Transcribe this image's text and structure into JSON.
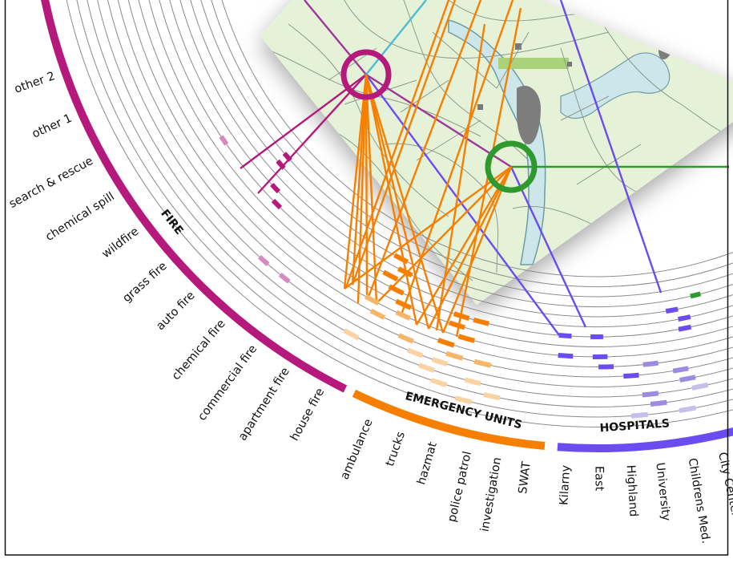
{
  "groups": {
    "fire": {
      "label": "FIRE",
      "color": "#b5197c",
      "types": [
        "house fire",
        "apartment fire",
        "commercial fire",
        "chemical fire",
        "auto fire",
        "grass fire",
        "wildfire",
        "chemical spill",
        "search & rescue",
        "other 1",
        "other 2"
      ]
    },
    "emergency_units": {
      "label": "EMERGENCY UNITS",
      "color": "#f77f00",
      "types": [
        "ambulance",
        "trucks",
        "hazmat",
        "police patrol",
        "investigation",
        "SWAT"
      ]
    },
    "hospitals": {
      "label": "HOSPITALS",
      "color": "#6a4cf0",
      "types": [
        "Kilarny",
        "East",
        "Highland",
        "University",
        "Childrens Med.",
        "City Center"
      ]
    }
  },
  "map_markers": [
    {
      "name": "incident-marker-fire",
      "color": "#b5197c"
    },
    {
      "name": "incident-marker-hospital",
      "color": "#2e9a2e"
    }
  ],
  "colors": {
    "map_land": "#e6f2d8",
    "map_water": "#cde6ea",
    "map_park": "#a9d27b",
    "river_light": "#4bbcd4",
    "ring_line": "#8a8a8a"
  }
}
